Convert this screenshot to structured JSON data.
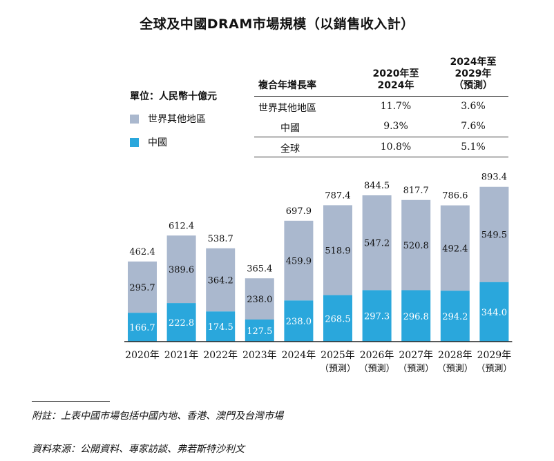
{
  "title": "全球及中國DRAM市場規模（以銷售收入計）",
  "unit": "單位：人民幣十億元",
  "legend": [
    {
      "label": "世界其他地區",
      "color": "#aab8ce"
    },
    {
      "label": "中國",
      "color": "#2aa7dc"
    }
  ],
  "cagr_table": {
    "header_label": "複合年增長率",
    "col1": "2020年至\n2024年",
    "col2": "2024年至\n2029年\n（預測）",
    "rows": [
      {
        "label": "世界其他地區",
        "v1": "11.7%",
        "v2": "3.6%"
      },
      {
        "label": "中國",
        "v1": "9.3%",
        "v2": "7.6%"
      },
      {
        "label": "全球",
        "v1": "10.8%",
        "v2": "5.1%"
      }
    ]
  },
  "chart_data": {
    "type": "bar",
    "stacked": true,
    "categories": [
      "2020年",
      "2021年",
      "2022年",
      "2023年",
      "2024年",
      "2025年",
      "2026年",
      "2027年",
      "2028年",
      "2029年"
    ],
    "category_sublabels": [
      "",
      "",
      "",
      "",
      "",
      "（預測）",
      "（預測）",
      "（預測）",
      "（預測）",
      "（預測）"
    ],
    "series": [
      {
        "name": "中國",
        "values": [
          166.7,
          222.8,
          174.5,
          127.5,
          238.0,
          268.5,
          297.3,
          296.8,
          294.2,
          344.0
        ],
        "color": "#2aa7dc"
      },
      {
        "name": "世界其他地區",
        "values": [
          295.7,
          389.6,
          364.2,
          238.0,
          459.9,
          518.9,
          547.2,
          520.8,
          492.4,
          549.5
        ],
        "color": "#aab8ce"
      }
    ],
    "totals": [
      462.4,
      612.4,
      538.7,
      365.4,
      697.9,
      787.4,
      844.5,
      817.7,
      786.6,
      893.4
    ]
  },
  "notes": {
    "footnote": "附註：上表中國市場包括中國內地、香港、澳門及台灣市場",
    "source": "資料來源：公開資料、專家訪談、弗若斯特沙利文"
  }
}
